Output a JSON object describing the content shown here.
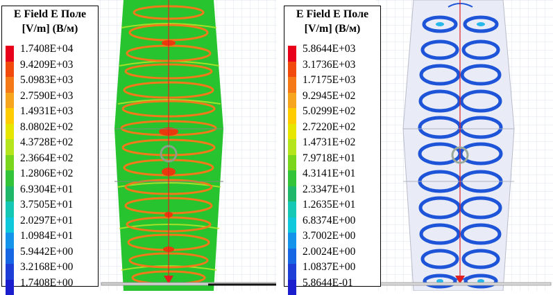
{
  "panels": [
    {
      "legend": {
        "title": "E Field E Поле",
        "units": "[V/m] (В/м)",
        "values": [
          "1.7408E+04",
          "9.4209E+03",
          "5.0983E+03",
          "2.7590E+03",
          "1.4931E+03",
          "8.0802E+02",
          "4.3728E+02",
          "2.3664E+02",
          "1.2806E+02",
          "6.9304E+01",
          "3.7505E+01",
          "2.0297E+01",
          "1.0984E+01",
          "5.9442E+00",
          "3.2168E+00",
          "1.7408E+00"
        ]
      }
    },
    {
      "legend": {
        "title": "E Field E Поле",
        "units": "[V/m] (В/м)",
        "values": [
          "5.8644E+03",
          "3.1736E+03",
          "1.7175E+03",
          "9.2945E+02",
          "5.0299E+02",
          "2.7220E+02",
          "1.4731E+02",
          "7.9718E+01",
          "4.3141E+01",
          "2.3347E+01",
          "1.2635E+01",
          "6.8374E+00",
          "3.7002E+00",
          "2.0024E+00",
          "1.0837E+00",
          "5.8644E-01"
        ]
      }
    }
  ],
  "colorscale": [
    "#e8001a",
    "#f24a0c",
    "#f57a17",
    "#f7a51c",
    "#ffcc00",
    "#e6e600",
    "#b5e61d",
    "#7ad51d",
    "#33c43a",
    "#1fb86a",
    "#15c7b5",
    "#10c8dc",
    "#1493ea",
    "#1766e4",
    "#1d3fd8",
    "#1a1ecc"
  ]
}
